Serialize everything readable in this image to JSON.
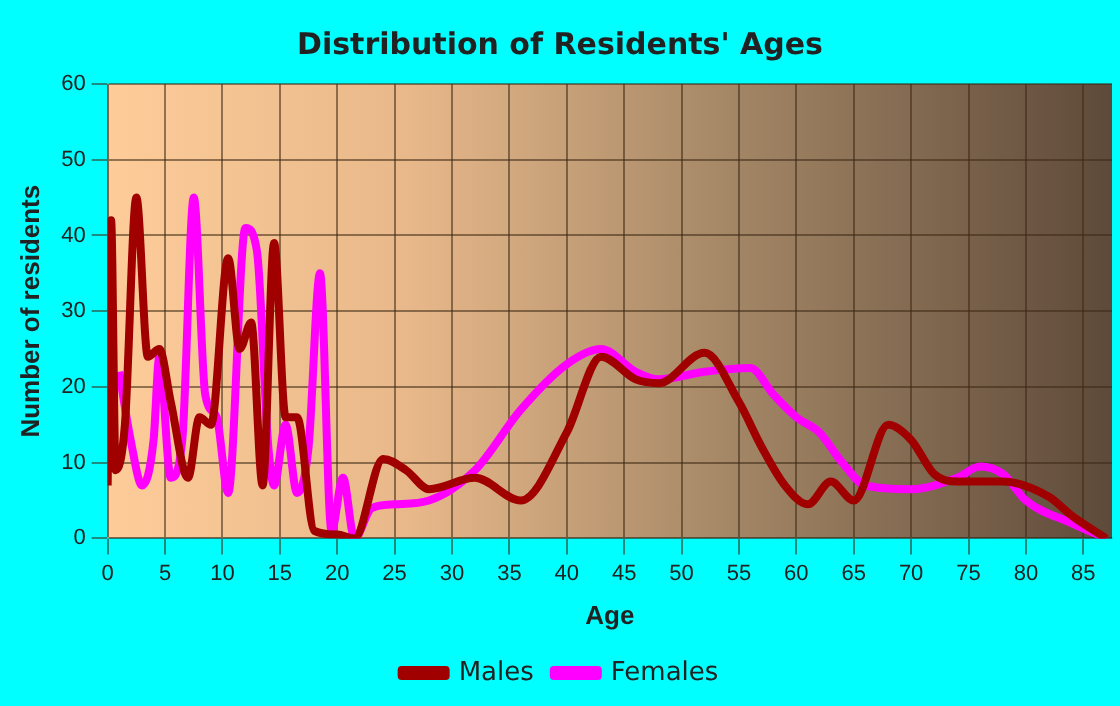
{
  "chart_data": {
    "type": "line",
    "title": "Distribution of Residents' Ages",
    "xlabel": "Age",
    "ylabel": "Number of residents",
    "xlim": [
      0,
      87.5
    ],
    "xticks": [
      0,
      5,
      10,
      15,
      20,
      25,
      30,
      35,
      40,
      45,
      50,
      55,
      60,
      65,
      70,
      75,
      80,
      85
    ],
    "ylim": [
      0,
      60
    ],
    "yticks": [
      0,
      10,
      20,
      30,
      40,
      50,
      60
    ],
    "grid": true,
    "legend": "bottom",
    "marker": "none",
    "series": [
      {
        "name": "Males",
        "color": "#a00000",
        "x": [
          0,
          0.3,
          0.7,
          1.5,
          2.5,
          3.5,
          4.5,
          5.5,
          7,
          8,
          9,
          10.5,
          11.5,
          12.5,
          13.5,
          14.5,
          15.5,
          16.5,
          18,
          20,
          21.5,
          24,
          26,
          28,
          32,
          36,
          40,
          43,
          46,
          48,
          52,
          55,
          57,
          59,
          61,
          63,
          65,
          68,
          70,
          72,
          74,
          78,
          82,
          84,
          87
        ],
        "values": [
          7,
          42,
          9,
          15,
          45,
          24,
          25,
          18,
          8,
          16,
          15,
          37,
          25,
          28.5,
          7,
          39,
          16,
          16,
          1,
          0.5,
          0,
          10.5,
          9,
          6.5,
          8,
          5,
          14,
          24,
          21,
          20.5,
          24.5,
          18,
          12,
          7,
          4.5,
          7.5,
          5,
          15,
          13,
          8.5,
          7.5,
          7.5,
          5.5,
          3,
          0
        ]
      },
      {
        "name": "Females",
        "color": "#ff00ff",
        "x": [
          1,
          2,
          3,
          4,
          4.5,
          5.5,
          6.5,
          7.5,
          8.5,
          9.5,
          10.5,
          12,
          13,
          14,
          14.5,
          15.5,
          16.5,
          17.5,
          18.5,
          19.5,
          20.5,
          21.5,
          23,
          25,
          28,
          32,
          36,
          40,
          43,
          46,
          48,
          52,
          56,
          58,
          60,
          62,
          64,
          66,
          70,
          74,
          76,
          78,
          80,
          84,
          87
        ],
        "values": [
          22,
          13,
          7,
          13,
          24,
          8,
          13,
          45,
          19,
          16,
          6,
          41,
          38,
          12,
          7,
          15,
          6,
          12,
          35,
          1,
          8,
          0,
          4,
          4.5,
          5,
          9,
          17,
          23,
          25,
          22,
          21,
          22,
          22.5,
          19,
          16,
          14,
          10,
          7,
          6.5,
          8,
          9.5,
          8.5,
          5,
          2,
          0
        ]
      }
    ]
  }
}
